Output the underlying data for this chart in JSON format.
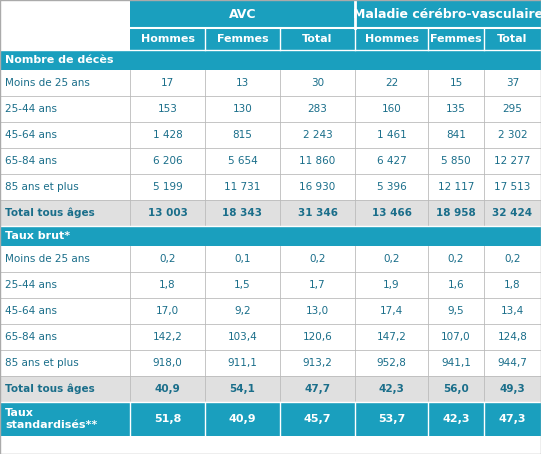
{
  "header1": [
    "AVC",
    "Maladie cérébro-vasculaire"
  ],
  "header2": [
    "Hommes",
    "Femmes",
    "Total",
    "Hommes",
    "Femmes",
    "Total"
  ],
  "section1_label": "Nombre de décès",
  "section2_label": "Taux brut*",
  "section3_label": "Taux\nstandardisés**",
  "row_labels_s1": [
    "Moins de 25 ans",
    "25-44 ans",
    "45-64 ans",
    "65-84 ans",
    "85 ans et plus",
    "Total tous âges"
  ],
  "data_s1": [
    [
      "17",
      "13",
      "30",
      "22",
      "15",
      "37"
    ],
    [
      "153",
      "130",
      "283",
      "160",
      "135",
      "295"
    ],
    [
      "1 428",
      "815",
      "2 243",
      "1 461",
      "841",
      "2 302"
    ],
    [
      "6 206",
      "5 654",
      "11 860",
      "6 427",
      "5 850",
      "12 277"
    ],
    [
      "5 199",
      "11 731",
      "16 930",
      "5 396",
      "12 117",
      "17 513"
    ],
    [
      "13 003",
      "18 343",
      "31 346",
      "13 466",
      "18 958",
      "32 424"
    ]
  ],
  "row_labels_s2": [
    "Moins de 25 ans",
    "25-44 ans",
    "45-64 ans",
    "65-84 ans",
    "85 ans et plus",
    "Total tous âges"
  ],
  "data_s2": [
    [
      "0,2",
      "0,1",
      "0,2",
      "0,2",
      "0,2",
      "0,2"
    ],
    [
      "1,8",
      "1,5",
      "1,7",
      "1,9",
      "1,6",
      "1,8"
    ],
    [
      "17,0",
      "9,2",
      "13,0",
      "17,4",
      "9,5",
      "13,4"
    ],
    [
      "142,2",
      "103,4",
      "120,6",
      "147,2",
      "107,0",
      "124,8"
    ],
    [
      "918,0",
      "911,1",
      "913,2",
      "952,8",
      "941,1",
      "944,7"
    ],
    [
      "40,9",
      "54,1",
      "47,7",
      "42,3",
      "56,0",
      "49,3"
    ]
  ],
  "data_s3": [
    "51,8",
    "40,9",
    "45,7",
    "53,7",
    "42,3",
    "47,3"
  ],
  "header_bg": "#1a9fbe",
  "section_bg": "#1a9fbe",
  "text_white": "#ffffff",
  "text_dark": "#1a6e8a",
  "grid_color": "#bbbbbb",
  "white": "#ffffff",
  "total_bg": "#e0e0e0"
}
